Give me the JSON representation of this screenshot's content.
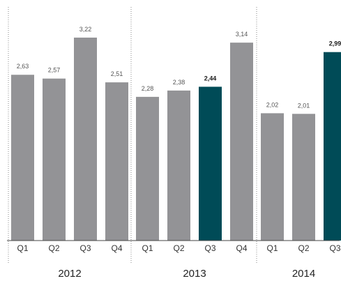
{
  "chart_data": {
    "type": "bar",
    "title": "",
    "xlabel": "",
    "ylabel": "",
    "ylim": [
      0,
      3.5
    ],
    "grid": false,
    "legend": "none",
    "colors": {
      "default": "#939396",
      "highlight": "#004b57",
      "separator": "#8a8a8a",
      "axis": "#444444"
    },
    "groups": [
      {
        "year": "2012",
        "bars": [
          {
            "quarter": "Q1",
            "value": 2.63,
            "label": "2,63",
            "highlight": false
          },
          {
            "quarter": "Q2",
            "value": 2.57,
            "label": "2,57",
            "highlight": false
          },
          {
            "quarter": "Q3",
            "value": 3.22,
            "label": "3,22",
            "highlight": false
          },
          {
            "quarter": "Q4",
            "value": 2.51,
            "label": "2,51",
            "highlight": false
          }
        ]
      },
      {
        "year": "2013",
        "bars": [
          {
            "quarter": "Q1",
            "value": 2.28,
            "label": "2,28",
            "highlight": false
          },
          {
            "quarter": "Q2",
            "value": 2.38,
            "label": "2,38",
            "highlight": false
          },
          {
            "quarter": "Q3",
            "value": 2.44,
            "label": "2,44",
            "highlight": true
          },
          {
            "quarter": "Q4",
            "value": 3.14,
            "label": "3,14",
            "highlight": false
          }
        ]
      },
      {
        "year": "2014",
        "bars": [
          {
            "quarter": "Q1",
            "value": 2.02,
            "label": "2,02",
            "highlight": false
          },
          {
            "quarter": "Q2",
            "value": 2.01,
            "label": "2,01",
            "highlight": false
          },
          {
            "quarter": "Q3",
            "value": 2.99,
            "label": "2,99",
            "highlight": true
          }
        ]
      }
    ]
  }
}
